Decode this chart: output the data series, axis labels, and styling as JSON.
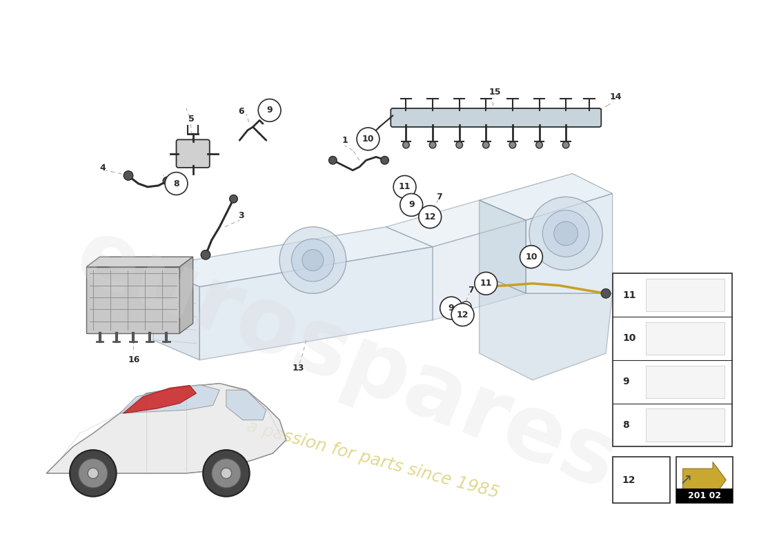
{
  "background_color": "#ffffff",
  "diagram_color": "#2a2a2a",
  "tank_edge_color": "#8090a0",
  "tank_face_color": "#dde8f0",
  "tank_top_color": "#c8d8e8",
  "dash_color": "#aaaaaa",
  "pipe_color": "#c8a020",
  "part_line_color": "#333333",
  "watermark_color": "#d8d8d8",
  "watermark_subtext_color": "#d4c860",
  "page_code": "201 02",
  "watermark_text": "eurospares",
  "watermark_subtext": "a passion for parts since 1985"
}
